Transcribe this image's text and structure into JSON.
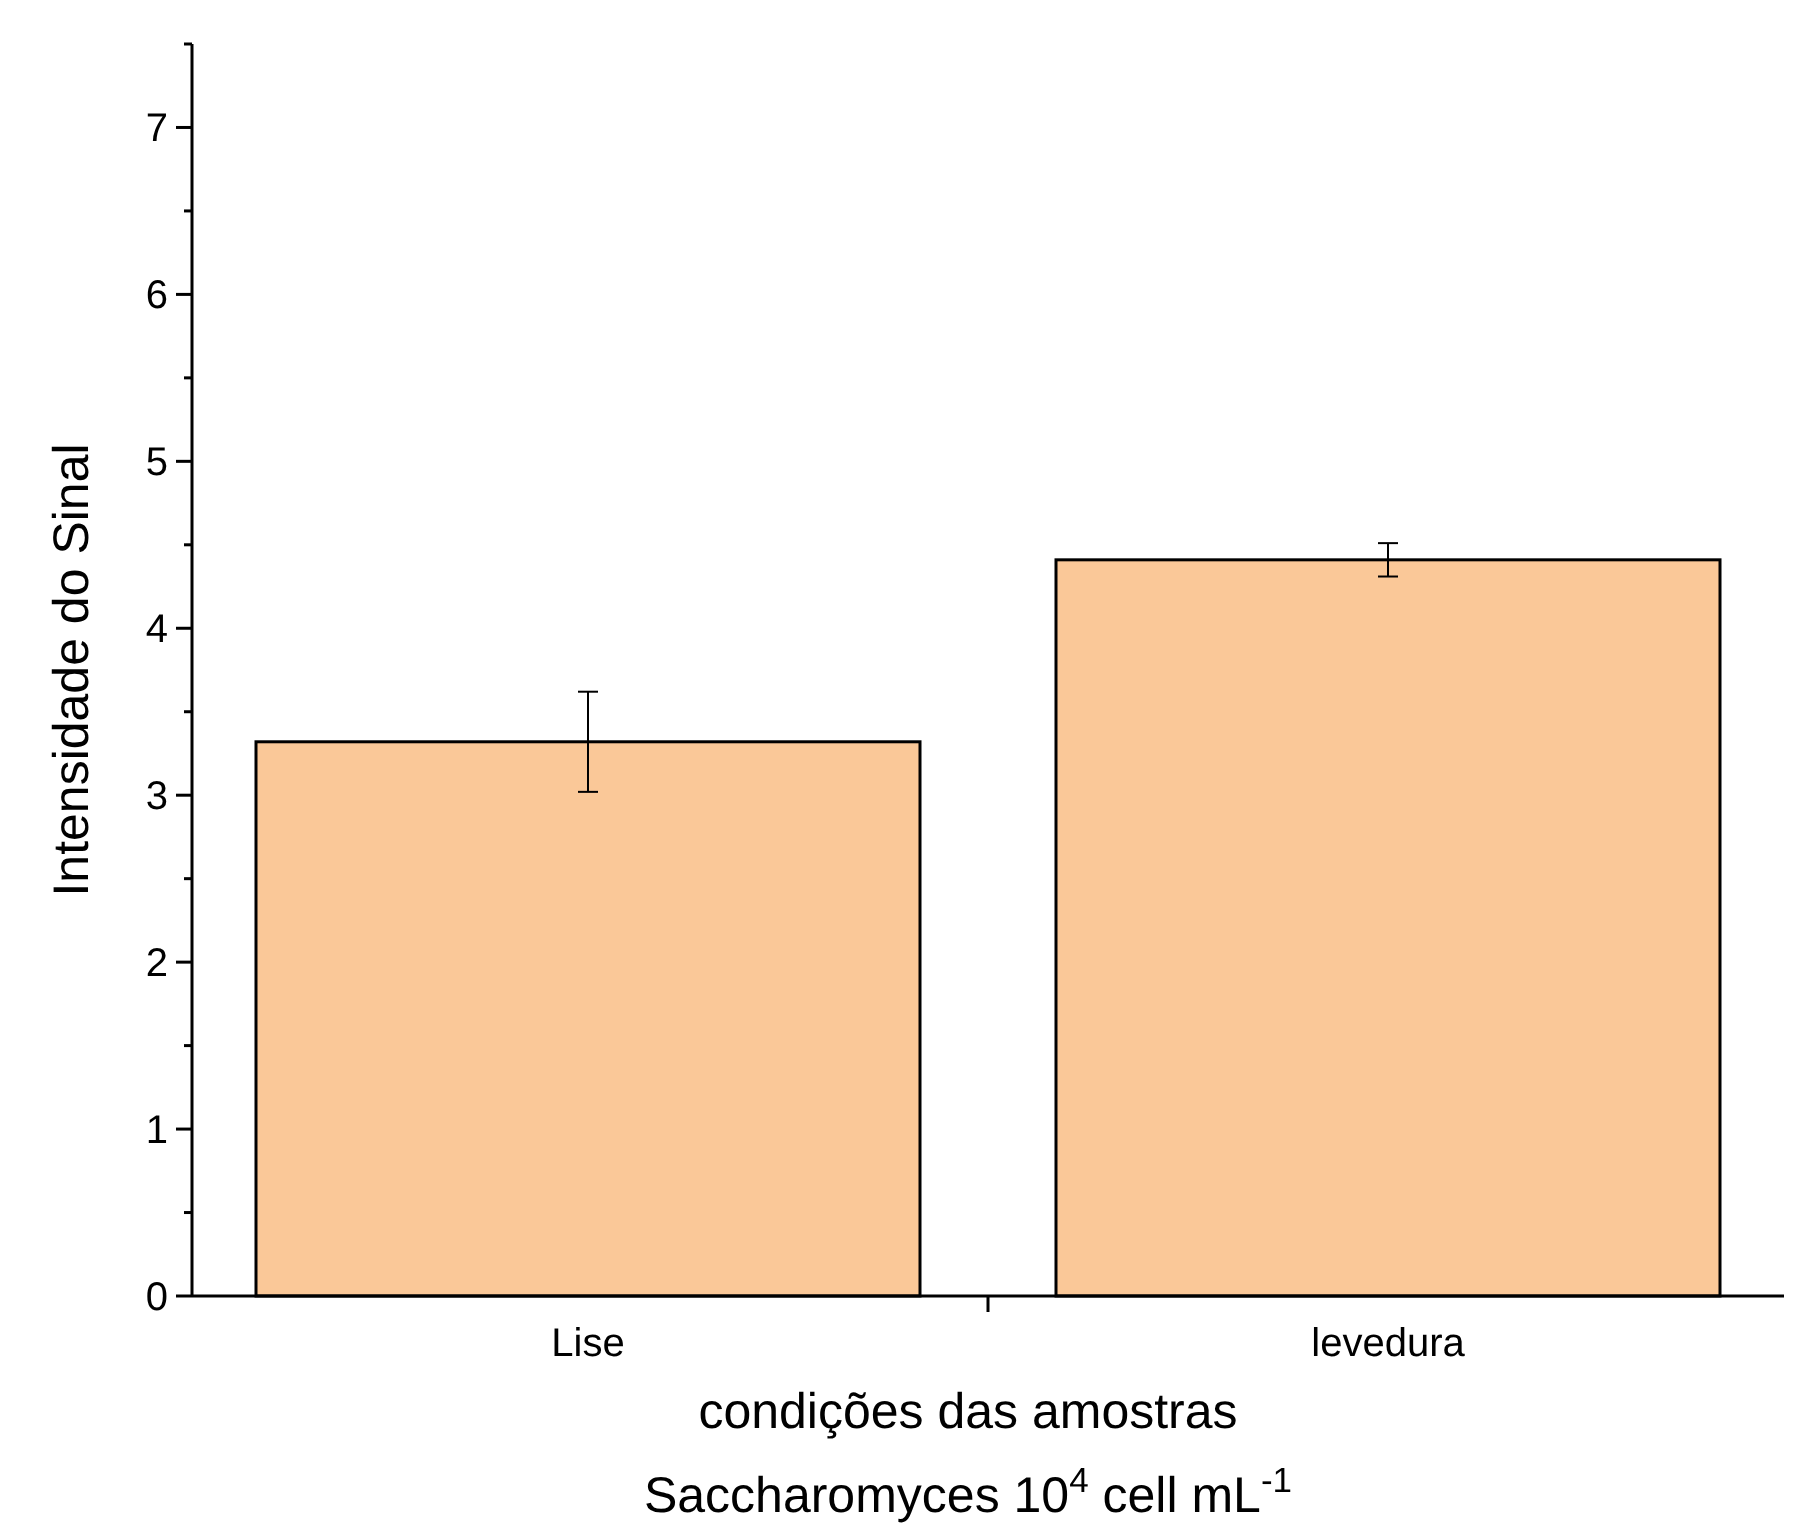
{
  "chart_data": {
    "type": "bar",
    "xlabel": "condições das amostras\nSaccharomyces 10$^{4}$ cell mL$^{-1}$",
    "ylabel": "Intensidade do Sinal",
    "categories": [
      "Lise",
      "levedura"
    ],
    "values": [
      3.32,
      4.41
    ],
    "errors": [
      0.3,
      0.1
    ],
    "color": "#fac898",
    "ylim": [
      0,
      7.5
    ],
    "yticks": [
      0,
      {
        "value": 0.5,
        "label": null
      },
      1,
      {
        "value": 1.5,
        "label": null
      },
      2,
      {
        "value": 2.5,
        "label": null
      },
      3,
      {
        "value": 3.5,
        "label": null
      },
      4,
      {
        "value": 4.5,
        "label": null
      },
      5,
      {
        "value": 5.5,
        "label": null
      },
      6,
      {
        "value": 6.5,
        "label": null
      },
      7,
      {
        "value": 7.5,
        "label": null
      }
    ],
    "grid": false
  }
}
